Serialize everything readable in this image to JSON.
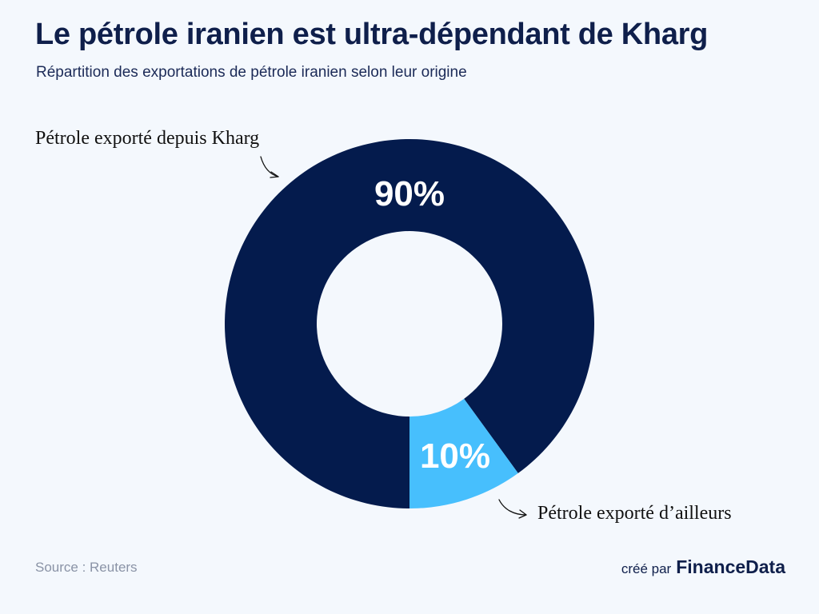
{
  "header": {
    "title": "Le pétrole iranien est ultra-dépendant de Kharg",
    "subtitle": "Répartition des exportations de pétrole iranien selon leur origine"
  },
  "chart_data": {
    "type": "pie",
    "variant": "donut",
    "title": "Le pétrole iranien est ultra-dépendant de Kharg",
    "subtitle": "Répartition des exportations de pétrole iranien selon leur origine",
    "slices": [
      {
        "label": "Pétrole exporté depuis Kharg",
        "value": 90,
        "value_label": "90%",
        "color": "#041b4d"
      },
      {
        "label": "Pétrole exporté d’ailleurs",
        "value": 10,
        "value_label": "10%",
        "color": "#47bffd"
      }
    ]
  },
  "footer": {
    "source": "Source : Reuters",
    "created_by": "créé par",
    "brand": "FinanceData"
  },
  "colors": {
    "background": "#f4f8fd",
    "title": "#0f1f4b",
    "source": "#8a93a6"
  }
}
